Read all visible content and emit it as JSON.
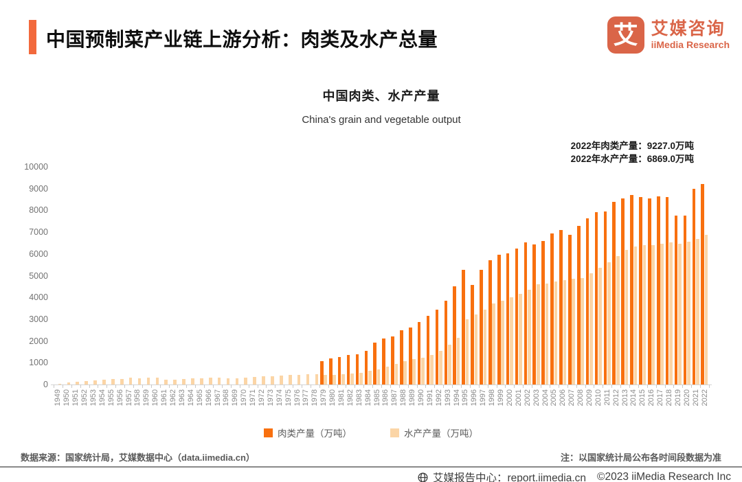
{
  "header": {
    "title": "中国预制菜产业链上游分析：肉类及水产总量",
    "logo": {
      "glyph": "艾",
      "brand_cn": "艾媒咨询",
      "brand_en": "iiMedia Research"
    }
  },
  "chart": {
    "title_cn": "中国肉类、水产产量",
    "title_en": "China's grain and vegetable output",
    "annotation_meat": "2022年肉类产量：9227.0万吨",
    "annotation_aquatic": "2022年水产产量：6869.0万吨"
  },
  "chart_data": {
    "type": "bar",
    "title": "中国肉类、水产产量",
    "subtitle": "China's grain and vegetable output",
    "xlabel": "",
    "ylabel": "",
    "ylim": [
      0,
      10000
    ],
    "y_ticks": [
      0,
      1000,
      2000,
      3000,
      4000,
      5000,
      6000,
      7000,
      8000,
      9000,
      10000
    ],
    "grid": false,
    "legend_position": "bottom",
    "categories": [
      "1949",
      "1950",
      "1951",
      "1952",
      "1953",
      "1954",
      "1955",
      "1956",
      "1957",
      "1958",
      "1959",
      "1960",
      "1961",
      "1962",
      "1963",
      "1964",
      "1965",
      "1966",
      "1967",
      "1968",
      "1969",
      "1970",
      "1971",
      "1972",
      "1973",
      "1974",
      "1975",
      "1976",
      "1977",
      "1978",
      "1979",
      "1980",
      "1981",
      "1982",
      "1983",
      "1984",
      "1985",
      "1986",
      "1987",
      "1988",
      "1989",
      "1990",
      "1991",
      "1992",
      "1993",
      "1994",
      "1995",
      "1996",
      "1997",
      "1998",
      "1999",
      "2000",
      "2001",
      "2002",
      "2003",
      "2004",
      "2005",
      "2006",
      "2007",
      "2008",
      "2009",
      "2010",
      "2011",
      "2012",
      "2013",
      "2014",
      "2015",
      "2016",
      "2017",
      "2018",
      "2019",
      "2020",
      "2021",
      "2022"
    ],
    "series": [
      {
        "name": "肉类产量（万吨）",
        "color": "#F8700F",
        "values": [
          null,
          null,
          null,
          null,
          null,
          null,
          null,
          null,
          null,
          null,
          null,
          null,
          null,
          null,
          null,
          null,
          null,
          null,
          null,
          null,
          null,
          null,
          null,
          null,
          null,
          null,
          null,
          null,
          null,
          null,
          1062,
          1205,
          1261,
          1351,
          1402,
          1541,
          1927,
          2112,
          2199,
          2479,
          2629,
          2857,
          3144,
          3431,
          3841,
          4499,
          5260,
          4584,
          5269,
          5724,
          5949,
          6014,
          6260,
          6520,
          6443,
          6609,
          6939,
          7089,
          6866,
          7279,
          7650,
          7926,
          7958,
          8387,
          8535,
          8707,
          8625,
          8538,
          8654,
          8625,
          7759,
          7748,
          8990,
          9227
        ]
      },
      {
        "name": "水产产量（万吨）",
        "color": "#FBD5A6",
        "values": [
          45,
          91,
          133,
          167,
          190,
          229,
          252,
          265,
          312,
          281,
          308,
          304,
          231,
          228,
          262,
          280,
          298,
          302,
          305,
          290,
          293,
          319,
          350,
          384,
          392,
          426,
          441,
          448,
          470,
          465,
          431,
          450,
          461,
          516,
          546,
          619,
          705,
          824,
          955,
          1061,
          1152,
          1237,
          1351,
          1557,
          1823,
          2146,
          3000,
          3210,
          3450,
          3730,
          3860,
          4000,
          4160,
          4340,
          4600,
          4650,
          4720,
          4790,
          4860,
          4896,
          5116,
          5373,
          5603,
          5908,
          6172,
          6350,
          6410,
          6410,
          6460,
          6530,
          6480,
          6549,
          6690,
          6869
        ]
      }
    ]
  },
  "footer": {
    "source": "数据来源：国家统计局，艾媒数据中心（data.iimedia.cn）",
    "note": "注：以国家统计局公布各时间段数据为准",
    "report_center": "艾媒报告中心：report.iimedia.cn",
    "copyright": "©2023  iiMedia Research  Inc"
  }
}
